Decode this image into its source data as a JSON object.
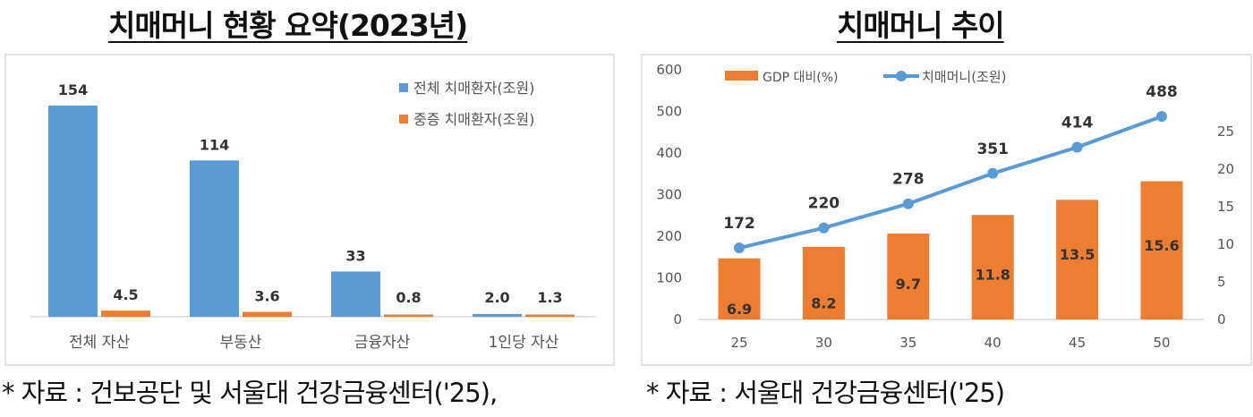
{
  "chart_data": [
    {
      "type": "bar",
      "title": "치매머니 현황 요약(2023년)",
      "categories": [
        "전체 자산",
        "부동산",
        "금융자산",
        "1인당 자산"
      ],
      "series": [
        {
          "name": "전체 치매환자(조원)",
          "values": [
            154,
            114,
            33,
            2.0
          ],
          "labels": [
            "154",
            "114",
            "33",
            "2.0"
          ],
          "color": "#5B9BD5"
        },
        {
          "name": "중증 치매환자(조원)",
          "values": [
            4.5,
            3.6,
            0.8,
            1.3
          ],
          "labels": [
            "4.5",
            "3.6",
            "0.8",
            "1.3"
          ],
          "color": "#ED7D31"
        }
      ],
      "legend": "top-right",
      "grid": false,
      "source": "* 자료 : 건보공단 및 서울대 건강금융센터('25),"
    },
    {
      "type": "bar+line",
      "title": "치매머니 추이",
      "categories": [
        "25",
        "30",
        "35",
        "40",
        "45",
        "50"
      ],
      "series": [
        {
          "name": "GDP 대비(%)",
          "type": "bar",
          "axis": "right",
          "values": [
            6.9,
            8.2,
            9.7,
            11.8,
            13.5,
            15.6
          ],
          "labels": [
            "6.9",
            "8.2",
            "9.7",
            "11.8",
            "13.5",
            "15.6"
          ],
          "color": "#ED7D31"
        },
        {
          "name": "치매머니(조원)",
          "type": "line",
          "axis": "left",
          "values": [
            172,
            220,
            278,
            351,
            414,
            488
          ],
          "labels": [
            "172",
            "220",
            "278",
            "351",
            "414",
            "488"
          ],
          "color": "#5B9BD5"
        }
      ],
      "y_left": {
        "ylim": [
          0,
          600
        ],
        "ticks": [
          "0",
          "100",
          "200",
          "300",
          "400",
          "500",
          "600"
        ]
      },
      "y_right": {
        "ylim": [
          0,
          25
        ],
        "ticks": [
          "0",
          "5",
          "10",
          "15",
          "20",
          "25"
        ]
      },
      "legend": "top",
      "grid": false,
      "source": "* 자료 : 서울대 건강금융센터('25)"
    }
  ]
}
